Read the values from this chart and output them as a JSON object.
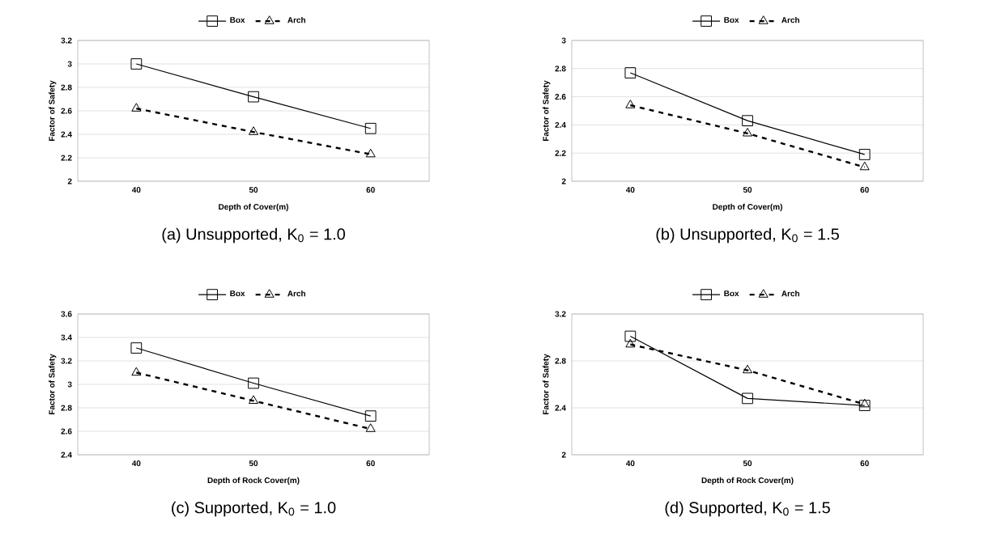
{
  "chart_data": [
    {
      "type": "line",
      "title": "(a) Unsupported, K$_{0}$ = 1.0",
      "xlabel": "Depth of Cover(m)",
      "ylabel": "Factor of Safety",
      "categories": [
        "40",
        "50",
        "60"
      ],
      "series": [
        {
          "name": "Box",
          "color": "#000000",
          "values": [
            3.0,
            2.72,
            2.45
          ],
          "marker": "square",
          "line_style": "solid"
        },
        {
          "name": "Arch",
          "color": "#000000",
          "values": [
            2.62,
            2.42,
            2.23
          ],
          "marker": "triangle",
          "line_style": "dashed"
        }
      ],
      "ylim": [
        2,
        3.2
      ],
      "yticks": [
        2,
        2.2,
        2.4,
        2.6,
        2.8,
        3,
        3.2
      ],
      "grid": "y",
      "legend": "top"
    },
    {
      "type": "line",
      "title": "(b) Unsupported, K$_{0}$ = 1.5",
      "xlabel": "Depth of Cover(m)",
      "ylabel": "Factor of Safety",
      "categories": [
        "40",
        "50",
        "60"
      ],
      "series": [
        {
          "name": "Box",
          "color": "#000000",
          "values": [
            2.77,
            2.43,
            2.19
          ],
          "marker": "square",
          "line_style": "solid"
        },
        {
          "name": "Arch",
          "color": "#000000",
          "values": [
            2.54,
            2.34,
            2.1
          ],
          "marker": "triangle",
          "line_style": "dashed"
        }
      ],
      "ylim": [
        2,
        3
      ],
      "yticks": [
        2,
        2.2,
        2.4,
        2.6,
        2.8,
        3
      ],
      "grid": "y",
      "legend": "top"
    },
    {
      "type": "line",
      "title": "(c) Supported, K$_{0}$ = 1.0",
      "xlabel": "Depth of Rock Cover(m)",
      "ylabel": "Factor of Safety",
      "categories": [
        "40",
        "50",
        "60"
      ],
      "series": [
        {
          "name": "Box",
          "color": "#000000",
          "values": [
            3.31,
            3.01,
            2.73
          ],
          "marker": "square",
          "line_style": "solid"
        },
        {
          "name": "Arch",
          "color": "#000000",
          "values": [
            3.1,
            2.86,
            2.62
          ],
          "marker": "triangle",
          "line_style": "dashed"
        }
      ],
      "ylim": [
        2.4,
        3.6
      ],
      "yticks": [
        2.4,
        2.6,
        2.8,
        3,
        3.2,
        3.4,
        3.6
      ],
      "grid": "y",
      "legend": "top"
    },
    {
      "type": "line",
      "title": "(d) Supported, K$_{0}$ = 1.5",
      "xlabel": "Depth of Rock Cover(m)",
      "ylabel": "Factor of Safety",
      "categories": [
        "40",
        "50",
        "60"
      ],
      "series": [
        {
          "name": "Box",
          "color": "#000000",
          "values": [
            3.01,
            2.48,
            2.42
          ],
          "marker": "square",
          "line_style": "solid"
        },
        {
          "name": "Arch",
          "color": "#000000",
          "values": [
            2.94,
            2.72,
            2.43
          ],
          "marker": "triangle",
          "line_style": "dashed"
        }
      ],
      "ylim": [
        2,
        3.2
      ],
      "yticks": [
        2,
        2.4,
        2.8,
        3.2
      ],
      "grid": "y",
      "legend": "top"
    }
  ]
}
